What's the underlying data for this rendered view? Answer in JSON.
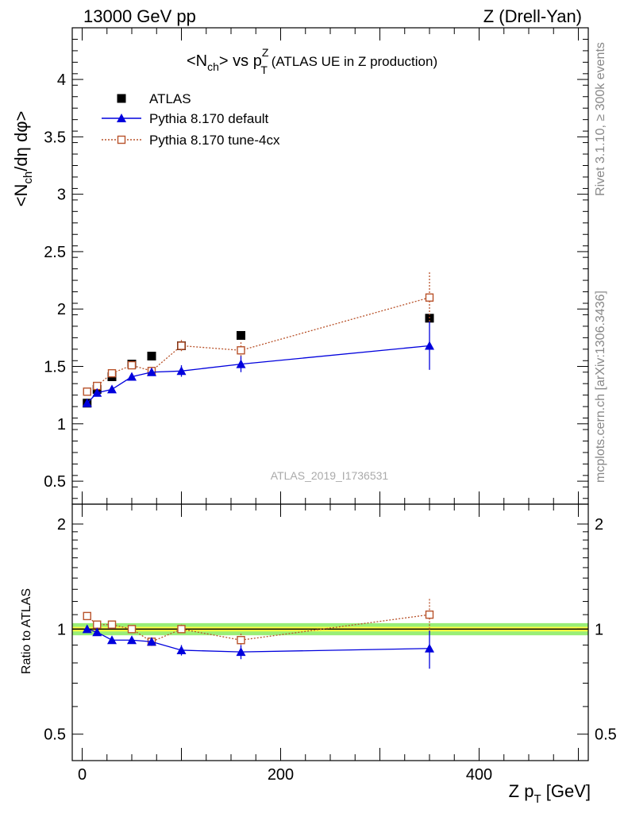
{
  "header": {
    "left": "13000 GeV pp",
    "right": "Z (Drell-Yan)"
  },
  "side_text": {
    "top": "Rivet 3.1.10, ≥ 300k events",
    "bottom": "mcplots.cern.ch [arXiv:1306.3436]"
  },
  "colors": {
    "data": "#000000",
    "default": "#0000dd",
    "tune": "#b8522a",
    "band_inner": "#ffff44",
    "band_outer": "#99ee77"
  },
  "chart_data": [
    {
      "type": "scatter",
      "panel": "main",
      "title_parts": {
        "pre": "<N",
        "sub1": "ch",
        "mid": "> vs p",
        "sup": "Z",
        "sub2": "T",
        "post": " (ATLAS UE in Z production)"
      },
      "ylabel_parts": {
        "pre": "<N",
        "sub": "ch",
        "post": "/dη dφ>"
      },
      "watermark": "ATLAS_2019_I1736531",
      "xlim": [
        -10,
        510
      ],
      "ylim": [
        0.3,
        4.45
      ],
      "yticks": [
        0.5,
        1,
        1.5,
        2,
        2.5,
        3,
        3.5,
        4
      ],
      "ytick_labels": [
        "0.5",
        "1",
        "1.5",
        "2",
        "2.5",
        "3",
        "3.5",
        "4"
      ],
      "legend_position": "top-left",
      "series": [
        {
          "name": "ATLAS",
          "marker": "square-filled",
          "x": [
            5,
            15,
            30,
            50,
            70,
            100,
            160,
            350
          ],
          "y": [
            1.18,
            1.3,
            1.41,
            1.52,
            1.59,
            1.68,
            1.77,
            1.92
          ],
          "yerr": [
            0,
            0,
            0,
            0,
            0,
            0,
            0,
            0
          ]
        },
        {
          "name": "Pythia 8.170 default",
          "marker": "triangle-filled",
          "line": "solid",
          "x": [
            5,
            15,
            30,
            50,
            70,
            100,
            160,
            350
          ],
          "y": [
            1.18,
            1.27,
            1.3,
            1.41,
            1.45,
            1.46,
            1.52,
            1.68
          ],
          "yerr": [
            0.02,
            0.02,
            0.02,
            0.02,
            0.03,
            0.05,
            0.07,
            0.21
          ]
        },
        {
          "name": "Pythia 8.170 tune-4cx",
          "marker": "square-open",
          "line": "dotted",
          "x": [
            5,
            15,
            30,
            50,
            70,
            100,
            160,
            350
          ],
          "y": [
            1.28,
            1.33,
            1.44,
            1.51,
            1.46,
            1.68,
            1.64,
            2.1
          ],
          "yerr": [
            0.02,
            0.02,
            0.02,
            0.02,
            0.03,
            0.05,
            0.07,
            0.22
          ]
        }
      ]
    },
    {
      "type": "scatter",
      "panel": "ratio",
      "ylabel": "Ratio to ATLAS",
      "xlabel_parts": {
        "pre": "Z p",
        "sub": "T",
        "post": " [GeV]"
      },
      "xlim": [
        -10,
        510
      ],
      "ylim": [
        0.42,
        2.28
      ],
      "log_y": true,
      "xticks": [
        0,
        200,
        400
      ],
      "xtick_labels": [
        "0",
        "200",
        "400"
      ],
      "yticks": [
        0.5,
        1,
        2
      ],
      "ytick_labels": [
        "0.5",
        "1",
        "2"
      ],
      "reference_band": {
        "inner": [
          0.985,
          1.015
        ],
        "outer": [
          0.96,
          1.04
        ]
      },
      "series": [
        {
          "name": "Pythia 8.170 default",
          "x": [
            5,
            15,
            30,
            50,
            70,
            100,
            160,
            350
          ],
          "y": [
            1.0,
            0.98,
            0.93,
            0.93,
            0.92,
            0.87,
            0.86,
            0.88
          ],
          "yerr": [
            0.02,
            0.02,
            0.02,
            0.02,
            0.025,
            0.03,
            0.04,
            0.11
          ]
        },
        {
          "name": "Pythia 8.170 tune-4cx",
          "x": [
            5,
            15,
            30,
            50,
            70,
            100,
            160,
            350
          ],
          "y": [
            1.09,
            1.03,
            1.03,
            1.0,
            0.92,
            1.0,
            0.93,
            1.1
          ],
          "yerr": [
            0.02,
            0.02,
            0.02,
            0.02,
            0.025,
            0.03,
            0.04,
            0.12
          ]
        }
      ]
    }
  ]
}
